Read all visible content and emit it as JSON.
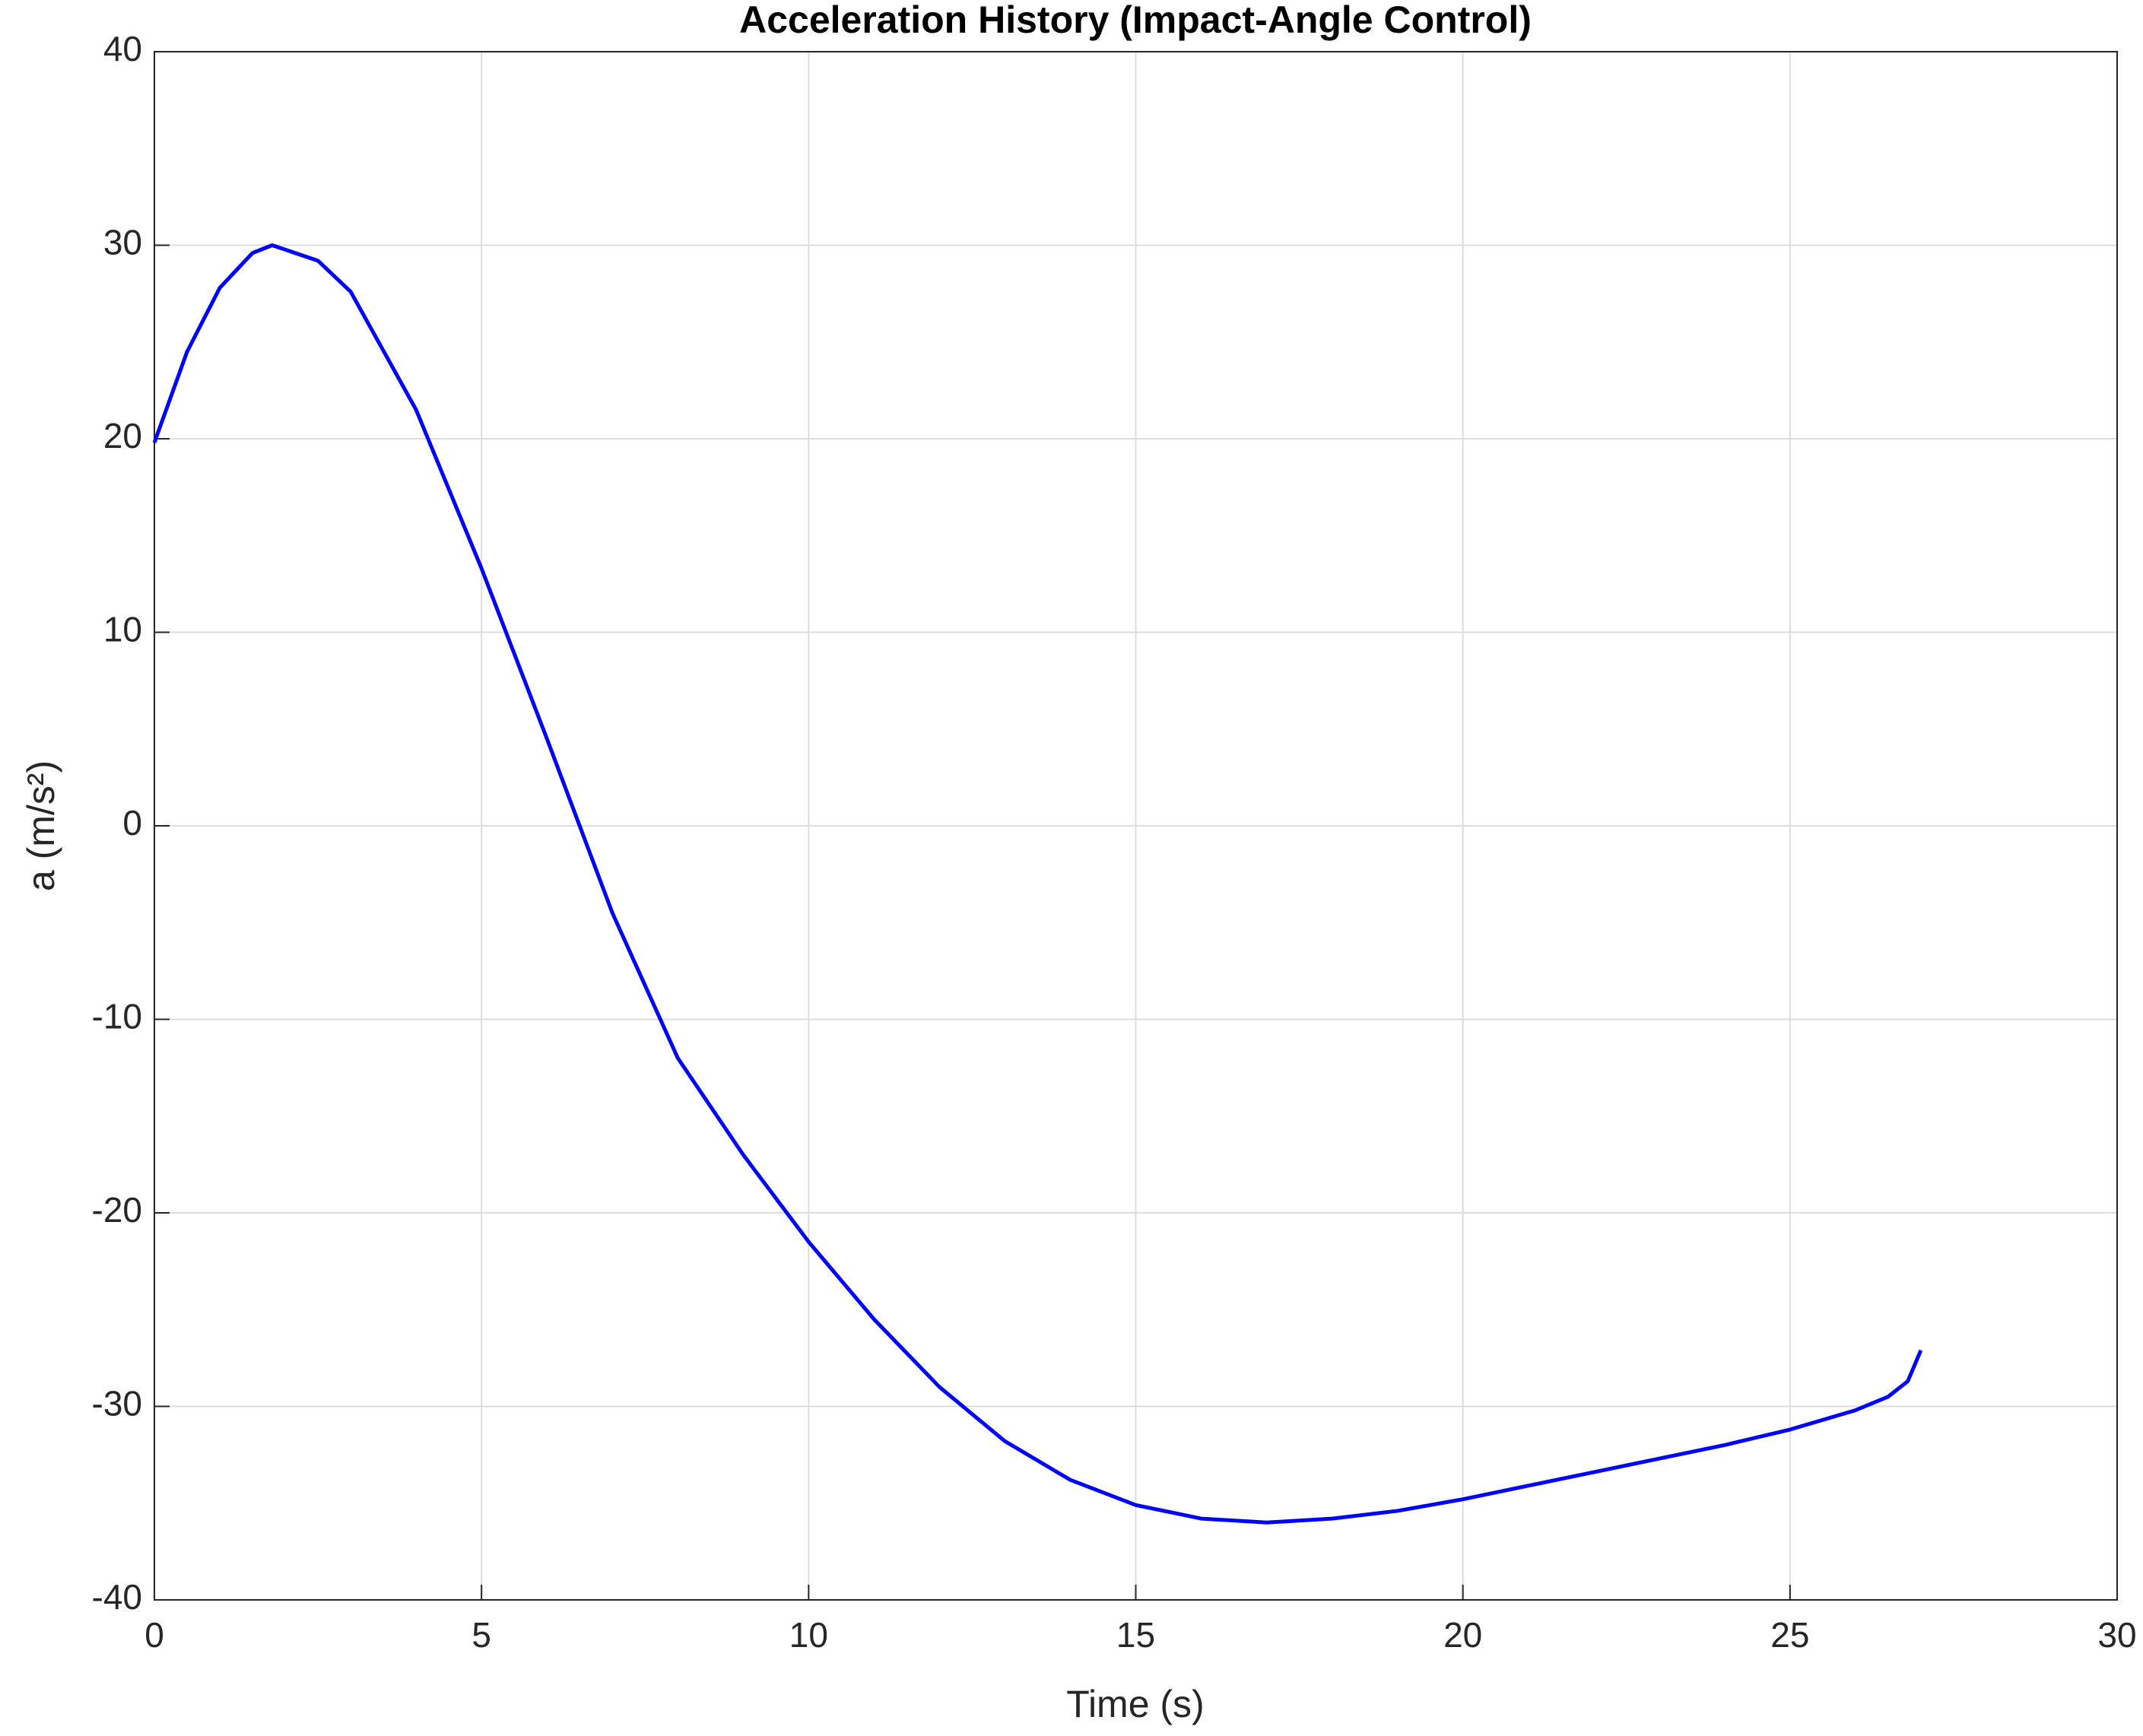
{
  "chart_data": {
    "type": "line",
    "title": "Acceleration History (Impact-Angle Control)",
    "xlabel": "Time (s)",
    "ylabel": "a (m/s²)",
    "x": [
      0,
      0.5,
      1,
      1.5,
      1.8,
      2.5,
      3,
      4,
      5,
      6,
      6.5,
      7,
      8,
      9,
      10,
      11,
      12,
      13,
      14,
      15,
      16,
      17,
      18,
      19,
      20,
      21,
      22,
      23,
      24,
      25,
      26,
      26.5,
      26.8,
      27
    ],
    "series": [
      {
        "name": "a",
        "color": "#0000ff",
        "values": [
          19.8,
          24.5,
          27.8,
          29.6,
          30,
          29.2,
          27.6,
          21.5,
          13.3,
          4.5,
          0,
          -4.5,
          -12,
          -17,
          -21.5,
          -25.5,
          -29,
          -31.8,
          -33.8,
          -35.1,
          -35.8,
          -36,
          -35.8,
          -35.4,
          -34.8,
          -34.1,
          -33.4,
          -32.7,
          -32,
          -31.2,
          -30.2,
          -29.5,
          -28.7,
          -27.1
        ]
      }
    ],
    "xlim": [
      0,
      30
    ],
    "xticks": [
      0,
      5,
      10,
      15,
      20,
      25,
      30
    ],
    "ylim": [
      -40,
      40
    ],
    "yticks": [
      -40,
      -30,
      -20,
      -10,
      0,
      10,
      20,
      30,
      40
    ],
    "grid": true
  }
}
